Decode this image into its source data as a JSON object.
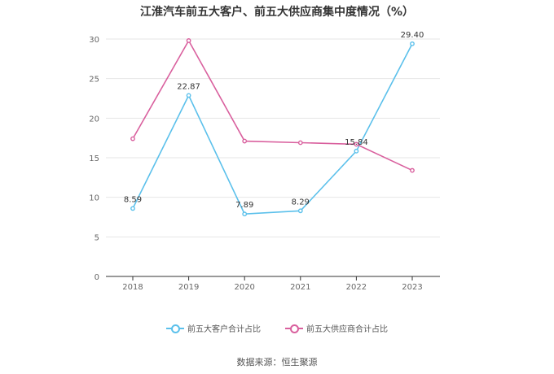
{
  "title": "江淮汽车前五大客户、前五大供应商集中度情况（%）",
  "source": "数据来源：恒生聚源",
  "chart_data": {
    "type": "line",
    "title": "江淮汽车前五大客户、前五大供应商集中度情况（%）",
    "categories": [
      "2018",
      "2019",
      "2020",
      "2021",
      "2022",
      "2023"
    ],
    "ylim": [
      0,
      30
    ],
    "yticks": [
      0,
      5,
      10,
      15,
      20,
      25,
      30
    ],
    "grid": true,
    "legend_position": "bottom",
    "series": [
      {
        "name": "前五大客户合计占比",
        "color": "#5bc0eb",
        "values": [
          8.59,
          22.87,
          7.89,
          8.29,
          15.84,
          29.4
        ],
        "labels": [
          "8.59",
          "22.87",
          "7.89",
          "8.29",
          "15.84",
          "29.40"
        ]
      },
      {
        "name": "前五大供应商合计占比",
        "color": "#d9609e",
        "values": [
          17.4,
          29.8,
          17.1,
          16.9,
          16.7,
          13.4
        ],
        "labels": []
      }
    ]
  }
}
